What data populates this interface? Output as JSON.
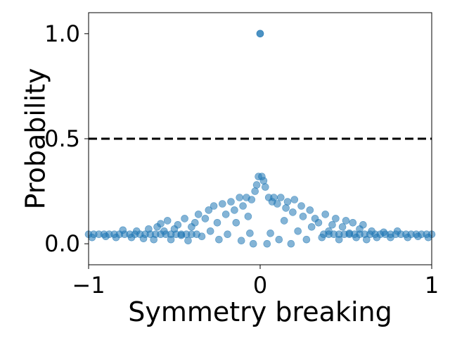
{
  "chart_data": {
    "type": "scatter",
    "title": "",
    "xlabel": "Symmetry breaking",
    "ylabel": "Probability",
    "xlim": [
      -1,
      1
    ],
    "ylim": [
      -0.1,
      1.1
    ],
    "x_ticks": [
      -1,
      0,
      1
    ],
    "x_tick_labels": [
      "−1",
      "0",
      "1"
    ],
    "y_ticks": [
      0.0,
      0.5,
      1.0
    ],
    "y_tick_labels": [
      "0.0",
      "0.5",
      "1.0"
    ],
    "grid": false,
    "legend": "none",
    "reference_line": {
      "y": 0.5,
      "style": "dashed",
      "color": "#000000"
    },
    "series": [
      {
        "color": "#1f77b4",
        "opacity": 0.55,
        "points": [
          [
            0.0,
            1.0
          ],
          [
            0.0,
            1.0
          ],
          [
            -1.0,
            0.045
          ],
          [
            -0.97,
            0.045
          ],
          [
            -0.94,
            0.045
          ],
          [
            -0.91,
            0.045
          ],
          [
            -0.88,
            0.045
          ],
          [
            -0.85,
            0.045
          ],
          [
            -0.82,
            0.045
          ],
          [
            -0.79,
            0.045
          ],
          [
            -0.76,
            0.045
          ],
          [
            -0.73,
            0.045
          ],
          [
            -0.7,
            0.045
          ],
          [
            -0.67,
            0.045
          ],
          [
            -0.64,
            0.045
          ],
          [
            -0.61,
            0.045
          ],
          [
            -0.58,
            0.045
          ],
          [
            -0.55,
            0.045
          ],
          [
            -0.52,
            0.045
          ],
          [
            -0.49,
            0.045
          ],
          [
            -0.46,
            0.045
          ],
          [
            -0.43,
            0.045
          ],
          [
            -0.4,
            0.045
          ],
          [
            -0.37,
            0.045
          ],
          [
            0.37,
            0.045
          ],
          [
            0.4,
            0.045
          ],
          [
            0.43,
            0.045
          ],
          [
            0.46,
            0.045
          ],
          [
            0.49,
            0.045
          ],
          [
            0.52,
            0.045
          ],
          [
            0.55,
            0.045
          ],
          [
            0.58,
            0.045
          ],
          [
            0.61,
            0.045
          ],
          [
            0.64,
            0.045
          ],
          [
            0.67,
            0.045
          ],
          [
            0.7,
            0.045
          ],
          [
            0.73,
            0.045
          ],
          [
            0.76,
            0.045
          ],
          [
            0.79,
            0.045
          ],
          [
            0.82,
            0.045
          ],
          [
            0.85,
            0.045
          ],
          [
            0.88,
            0.045
          ],
          [
            0.91,
            0.045
          ],
          [
            0.94,
            0.045
          ],
          [
            0.97,
            0.045
          ],
          [
            1.0,
            0.045
          ],
          [
            -0.98,
            0.03
          ],
          [
            -0.9,
            0.035
          ],
          [
            -0.84,
            0.03
          ],
          [
            -0.8,
            0.065
          ],
          [
            -0.75,
            0.03
          ],
          [
            -0.72,
            0.06
          ],
          [
            -0.68,
            0.025
          ],
          [
            -0.65,
            0.07
          ],
          [
            -0.62,
            0.02
          ],
          [
            -0.6,
            0.08
          ],
          [
            -0.58,
            0.095
          ],
          [
            -0.56,
            0.06
          ],
          [
            -0.54,
            0.11
          ],
          [
            -0.52,
            0.02
          ],
          [
            -0.5,
            0.07
          ],
          [
            -0.48,
            0.09
          ],
          [
            -0.46,
            0.04
          ],
          [
            -0.44,
            0.12
          ],
          [
            -0.42,
            0.015
          ],
          [
            -0.4,
            0.08
          ],
          [
            -0.38,
            0.1
          ],
          [
            -0.36,
            0.14
          ],
          [
            -0.34,
            0.035
          ],
          [
            -0.32,
            0.12
          ],
          [
            -0.3,
            0.16
          ],
          [
            -0.29,
            0.06
          ],
          [
            -0.27,
            0.18
          ],
          [
            -0.25,
            0.1
          ],
          [
            -0.24,
            0.02
          ],
          [
            -0.22,
            0.19
          ],
          [
            -0.2,
            0.14
          ],
          [
            -0.19,
            0.045
          ],
          [
            -0.17,
            0.2
          ],
          [
            -0.15,
            0.16
          ],
          [
            -0.14,
            0.1
          ],
          [
            -0.12,
            0.22
          ],
          [
            -0.11,
            0.015
          ],
          [
            -0.1,
            0.18
          ],
          [
            -0.08,
            0.22
          ],
          [
            -0.07,
            0.13
          ],
          [
            -0.06,
            0.05
          ],
          [
            -0.05,
            0.21
          ],
          [
            -0.04,
            0.0
          ],
          [
            -0.03,
            0.25
          ],
          [
            -0.02,
            0.28
          ],
          [
            -0.01,
            0.32
          ],
          [
            0.01,
            0.32
          ],
          [
            0.02,
            0.3
          ],
          [
            0.03,
            0.27
          ],
          [
            0.04,
            0.0
          ],
          [
            0.05,
            0.22
          ],
          [
            0.06,
            0.05
          ],
          [
            0.07,
            0.2
          ],
          [
            0.08,
            0.22
          ],
          [
            0.1,
            0.19
          ],
          [
            0.11,
            0.02
          ],
          [
            0.12,
            0.22
          ],
          [
            0.14,
            0.11
          ],
          [
            0.15,
            0.17
          ],
          [
            0.16,
            0.2
          ],
          [
            0.18,
            0.0
          ],
          [
            0.19,
            0.15
          ],
          [
            0.2,
            0.21
          ],
          [
            0.22,
            0.06
          ],
          [
            0.24,
            0.18
          ],
          [
            0.25,
            0.13
          ],
          [
            0.27,
            0.02
          ],
          [
            0.29,
            0.16
          ],
          [
            0.3,
            0.08
          ],
          [
            0.32,
            0.12
          ],
          [
            0.34,
            0.1
          ],
          [
            0.36,
            0.03
          ],
          [
            0.38,
            0.14
          ],
          [
            0.4,
            0.06
          ],
          [
            0.42,
            0.09
          ],
          [
            0.44,
            0.12
          ],
          [
            0.46,
            0.02
          ],
          [
            0.48,
            0.08
          ],
          [
            0.5,
            0.11
          ],
          [
            0.52,
            0.05
          ],
          [
            0.54,
            0.1
          ],
          [
            0.56,
            0.03
          ],
          [
            0.58,
            0.07
          ],
          [
            0.6,
            0.09
          ],
          [
            0.62,
            0.02
          ],
          [
            0.65,
            0.06
          ],
          [
            0.68,
            0.03
          ],
          [
            0.72,
            0.055
          ],
          [
            0.76,
            0.03
          ],
          [
            0.8,
            0.06
          ],
          [
            0.86,
            0.03
          ],
          [
            0.92,
            0.035
          ],
          [
            0.98,
            0.03
          ]
        ]
      }
    ]
  }
}
